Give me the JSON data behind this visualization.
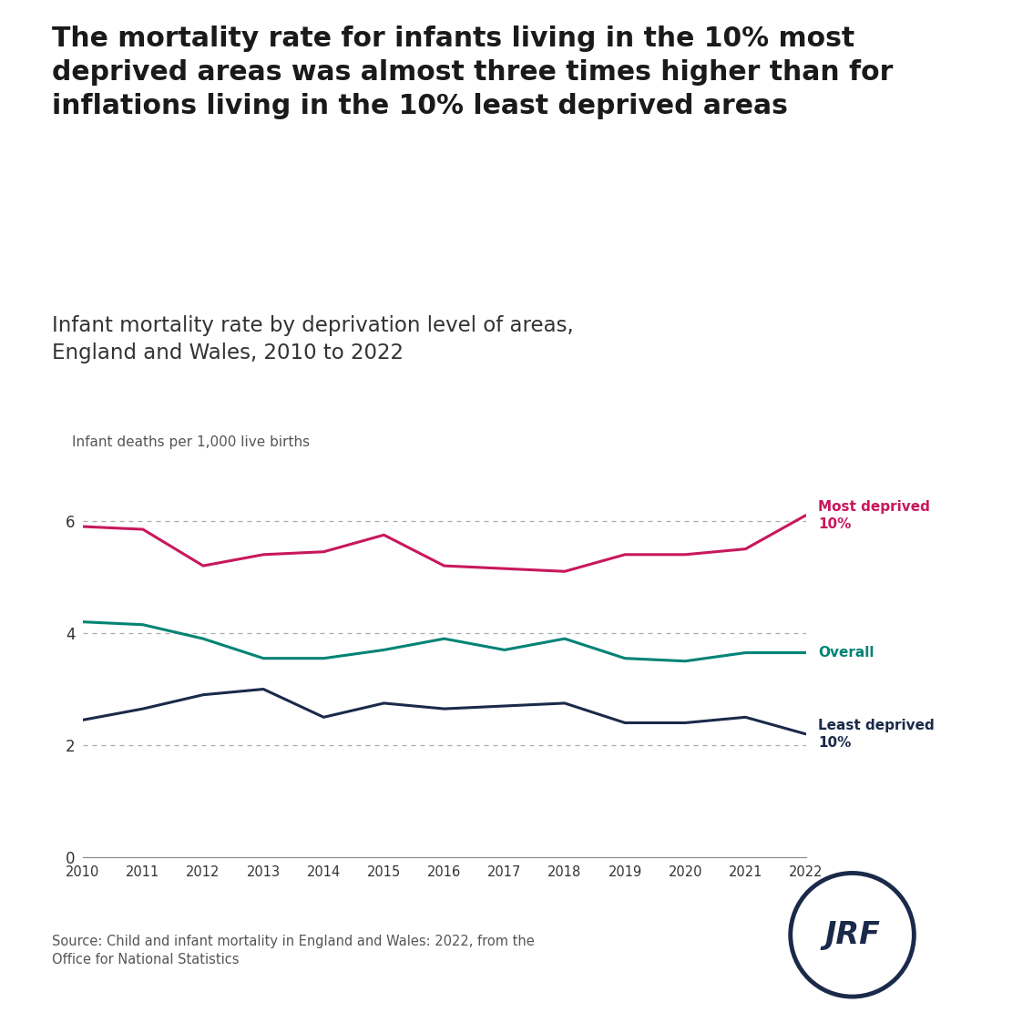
{
  "title_bold": "The mortality rate for infants living in the 10% most\ndeprived areas was almost three times higher than for\ninflations living in the 10% least deprived areas",
  "subtitle": "Infant mortality rate by deprivation level of areas,\nEngland and Wales, 2010 to 2022",
  "ylabel": "Infant deaths per 1,000 live births",
  "years": [
    2010,
    2011,
    2012,
    2013,
    2014,
    2015,
    2016,
    2017,
    2018,
    2019,
    2020,
    2021,
    2022
  ],
  "most_deprived": [
    5.9,
    5.85,
    5.2,
    5.4,
    5.45,
    5.75,
    5.2,
    5.15,
    5.1,
    5.4,
    5.4,
    5.5,
    6.1
  ],
  "overall": [
    4.2,
    4.15,
    3.9,
    3.55,
    3.55,
    3.7,
    3.9,
    3.7,
    3.9,
    3.55,
    3.5,
    3.65,
    3.65
  ],
  "least_deprived": [
    2.45,
    2.65,
    2.9,
    3.0,
    2.5,
    2.75,
    2.65,
    2.7,
    2.75,
    2.4,
    2.4,
    2.5,
    2.2
  ],
  "color_most": "#c8175d",
  "color_overall": "#008375",
  "color_least": "#1b2a4a",
  "background_color": "#ffffff",
  "top_bar_color": "#008375",
  "source_text": "Source: Child and infant mortality in England and Wales: 2022, from the\nOffice for National Statistics",
  "ylim": [
    0,
    7
  ],
  "yticks": [
    0,
    2,
    4,
    6
  ],
  "label_most": "Most deprived\n10%",
  "label_overall": "Overall",
  "label_least": "Least deprived\n10%"
}
